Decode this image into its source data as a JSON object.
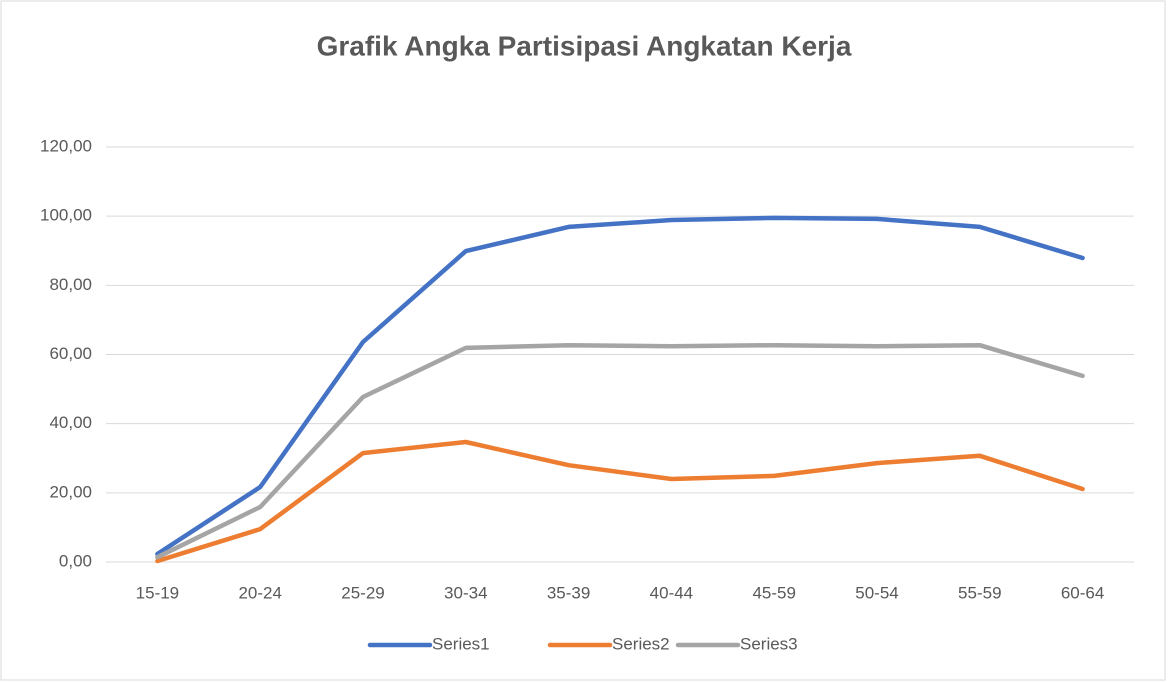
{
  "chart_data": {
    "type": "line",
    "title": "Grafik  Angka Partisipasi Angkatan Kerja",
    "categories": [
      "15-19",
      "20-24",
      "25-29",
      "30-34",
      "35-39",
      "40-44",
      "45-59",
      "50-54",
      "55-59",
      "60-64"
    ],
    "series": [
      {
        "name": "Series1",
        "color": "#4472c4",
        "values": [
          2.3,
          21.7,
          63.6,
          89.9,
          96.9,
          98.9,
          99.5,
          99.2,
          96.9,
          87.9
        ]
      },
      {
        "name": "Series2",
        "color": "#ed7d31",
        "values": [
          0.3,
          9.5,
          31.5,
          34.7,
          28.0,
          24.0,
          24.9,
          28.6,
          30.7,
          21.1
        ]
      },
      {
        "name": "Series3",
        "color": "#a5a5a5",
        "values": [
          1.4,
          15.9,
          47.7,
          61.9,
          62.7,
          62.4,
          62.7,
          62.4,
          62.7,
          53.8
        ]
      }
    ],
    "ylim": [
      0,
      120
    ],
    "yticks": [
      {
        "value": 0,
        "label": "0,00"
      },
      {
        "value": 20,
        "label": "20,00"
      },
      {
        "value": 40,
        "label": "40,00"
      },
      {
        "value": 60,
        "label": "60,00"
      },
      {
        "value": 80,
        "label": "80,00"
      },
      {
        "value": 100,
        "label": "100,00"
      },
      {
        "value": 120,
        "label": "120,00"
      }
    ],
    "grid": true,
    "legend": "bottom"
  }
}
